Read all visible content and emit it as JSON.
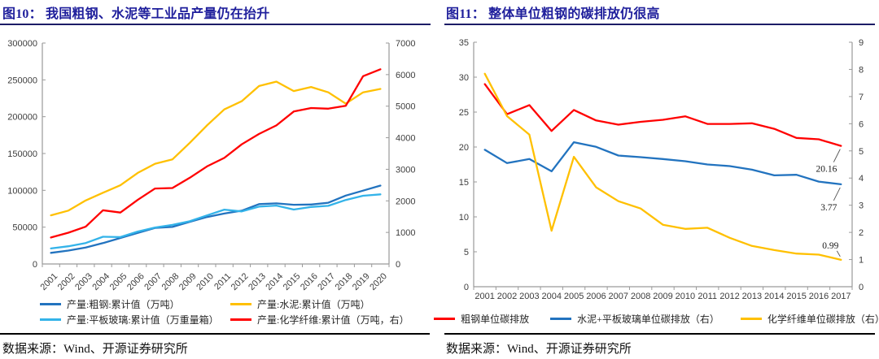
{
  "figures": [
    {
      "title": "图10： 我国粗钢、水泥等工业品产量仍在抬升",
      "source": "数据来源：Wind、开源证券研究所"
    },
    {
      "title": "图11： 整体单位粗钢的碳排放仍很高",
      "source": "数据来源：Wind、开源证券研究所"
    }
  ],
  "colors": {
    "title_navy": "#1F1F9C",
    "steel_blue": "#2273BF",
    "light_blue": "#33B3E9",
    "yellow": "#FFC000",
    "red": "#FF0000",
    "axis_line": "#9a9a9a",
    "tick_text": "#3d3d3d"
  },
  "chart_data": [
    {
      "type": "line",
      "title": "图10： 我国粗钢、水泥等工业品产量仍在抬升",
      "categories": [
        "2001",
        "2002",
        "2003",
        "2004",
        "2005",
        "2006",
        "2007",
        "2008",
        "2009",
        "2010",
        "2011",
        "2012",
        "2013",
        "2014",
        "2015",
        "2016",
        "2017",
        "2018",
        "2019",
        "2020"
      ],
      "left_axis": {
        "min": 0,
        "max": 300000,
        "step": 50000
      },
      "right_axis": {
        "min": 0,
        "max": 7000,
        "step": 1000
      },
      "grid": false,
      "legend_position": "bottom",
      "legend_rows": [
        2,
        2
      ],
      "x_label_rotation": -45,
      "series": [
        {
          "name": "产量:粗钢:累计值（万吨）",
          "axis": "left",
          "color": "#2273BF",
          "values": [
            15163,
            18237,
            22234,
            28291,
            35324,
            42102,
            48929,
            50306,
            57218,
            63723,
            68528,
            72388,
            81313,
            82270,
            80383,
            80761,
            83173,
            92826,
            99634,
            106477
          ]
        },
        {
          "name": "产量:水泥:累计值（万吨）",
          "axis": "left",
          "color": "#FFC000",
          "values": [
            66040,
            72500,
            86208,
            96682,
            106885,
            123677,
            136117,
            142000,
            164398,
            188191,
            209926,
            220984,
            241614,
            247619,
            234796,
            240295,
            233084,
            217667,
            233036,
            237691
          ]
        },
        {
          "name": "产量:平板玻璃:累计值（万重量箱）",
          "axis": "left",
          "color": "#33B3E9",
          "values": [
            21059,
            24000,
            28500,
            37000,
            36500,
            44000,
            49500,
            53000,
            58000,
            66000,
            73800,
            71400,
            77900,
            79300,
            73900,
            77400,
            79000,
            86900,
            92700,
            94572
          ]
        },
        {
          "name": "产量:化学纤维:累计值（万吨，右）",
          "axis": "right",
          "color": "#FF0000",
          "values": [
            840,
            990,
            1180,
            1700,
            1630,
            2030,
            2390,
            2405,
            2730,
            3090,
            3360,
            3790,
            4120,
            4390,
            4830,
            4940,
            4920,
            5010,
            5950,
            6168
          ]
        }
      ]
    },
    {
      "type": "line",
      "title": "图11： 整体单位粗钢的碳排放仍很高",
      "categories": [
        "2001",
        "2002",
        "2003",
        "2004",
        "2005",
        "2006",
        "2007",
        "2008",
        "2009",
        "2010",
        "2011",
        "2012",
        "2013",
        "2014",
        "2015",
        "2016",
        "2017"
      ],
      "left_axis": {
        "min": 0,
        "max": 35,
        "step": 5
      },
      "right_axis": {
        "min": 0,
        "max": 9,
        "step": 1
      },
      "grid": false,
      "legend_position": "bottom",
      "legend_rows": [
        3
      ],
      "x_label_rotation": 0,
      "series": [
        {
          "name": "粗钢单位碳排放",
          "axis": "left",
          "color": "#FF0000",
          "values": [
            29.0,
            24.7,
            26.0,
            22.3,
            25.3,
            23.8,
            23.2,
            23.6,
            23.9,
            24.4,
            23.3,
            23.3,
            23.4,
            22.6,
            21.3,
            21.1,
            20.16
          ],
          "end_label": "20.16",
          "end_label_side": "below"
        },
        {
          "name": "水泥+平板玻璃单位碳排放（右）",
          "axis": "right",
          "color": "#2273BF",
          "values": [
            5.04,
            4.55,
            4.7,
            4.25,
            5.32,
            5.15,
            4.83,
            4.77,
            4.7,
            4.62,
            4.5,
            4.44,
            4.31,
            4.1,
            4.12,
            3.87,
            3.77
          ],
          "end_label": "3.77",
          "end_label_side": "below"
        },
        {
          "name": "化学纤维单位碳排放（右）",
          "axis": "right",
          "color": "#FFC000",
          "values": [
            7.84,
            6.28,
            5.6,
            2.06,
            4.78,
            3.66,
            3.15,
            2.88,
            2.28,
            2.13,
            2.17,
            1.8,
            1.5,
            1.35,
            1.22,
            1.18,
            0.99
          ],
          "end_label": "0.99",
          "end_label_side": "above"
        }
      ]
    }
  ]
}
